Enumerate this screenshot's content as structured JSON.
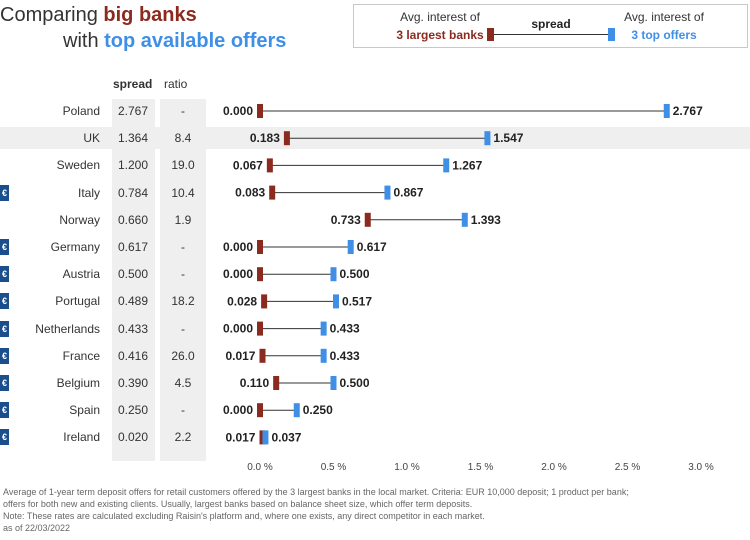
{
  "title": {
    "line1_prefix": "Comparing ",
    "line1_highlight": "big banks",
    "line2_prefix": "with ",
    "line2_highlight": "top available offers"
  },
  "legend": {
    "left_line1": "Avg. interest of",
    "left_line2": "3 largest banks",
    "middle": "spread",
    "right_line1": "Avg. interest of",
    "right_line2": "3 top offers"
  },
  "columns": {
    "spread": "spread",
    "ratio": "ratio"
  },
  "euro_symbol": "€",
  "colors": {
    "big_banks": "#8b2a1e",
    "top_offers": "#3f8fe6",
    "euro_badge": "#1a4e8c"
  },
  "chart_data": {
    "type": "dumbbell",
    "x_unit": "%",
    "xlim": [
      0,
      3.0
    ],
    "x_ticks": [
      "0.0 %",
      "0.5 %",
      "1.0 %",
      "1.5 %",
      "2.0 %",
      "2.5 %",
      "3.0 %"
    ],
    "x_tick_values": [
      0,
      0.5,
      1.0,
      1.5,
      2.0,
      2.5,
      3.0
    ],
    "series": [
      {
        "name": "Avg. interest of 3 largest banks",
        "color": "#8b2a1e"
      },
      {
        "name": "Avg. interest of 3 top offers",
        "color": "#3f8fe6"
      }
    ],
    "rows": [
      {
        "country": "Poland",
        "spread": "2.767",
        "ratio": "-",
        "big": 0.0,
        "top": 2.767,
        "big_label": "0.000",
        "top_label": "2.767",
        "euro": false
      },
      {
        "country": "UK",
        "spread": "1.364",
        "ratio": "8.4",
        "big": 0.183,
        "top": 1.547,
        "big_label": "0.183",
        "top_label": "1.547",
        "euro": false,
        "highlight": true
      },
      {
        "country": "Sweden",
        "spread": "1.200",
        "ratio": "19.0",
        "big": 0.067,
        "top": 1.267,
        "big_label": "0.067",
        "top_label": "1.267",
        "euro": false
      },
      {
        "country": "Italy",
        "spread": "0.784",
        "ratio": "10.4",
        "big": 0.083,
        "top": 0.867,
        "big_label": "0.083",
        "top_label": "0.867",
        "euro": true
      },
      {
        "country": "Norway",
        "spread": "0.660",
        "ratio": "1.9",
        "big": 0.733,
        "top": 1.393,
        "big_label": "0.733",
        "top_label": "1.393",
        "euro": false
      },
      {
        "country": "Germany",
        "spread": "0.617",
        "ratio": "-",
        "big": 0.0,
        "top": 0.617,
        "big_label": "0.000",
        "top_label": "0.617",
        "euro": true
      },
      {
        "country": "Austria",
        "spread": "0.500",
        "ratio": "-",
        "big": 0.0,
        "top": 0.5,
        "big_label": "0.000",
        "top_label": "0.500",
        "euro": true
      },
      {
        "country": "Portugal",
        "spread": "0.489",
        "ratio": "18.2",
        "big": 0.028,
        "top": 0.517,
        "big_label": "0.028",
        "top_label": "0.517",
        "euro": true
      },
      {
        "country": "Netherlands",
        "spread": "0.433",
        "ratio": "-",
        "big": 0.0,
        "top": 0.433,
        "big_label": "0.000",
        "top_label": "0.433",
        "euro": true
      },
      {
        "country": "France",
        "spread": "0.416",
        "ratio": "26.0",
        "big": 0.017,
        "top": 0.433,
        "big_label": "0.017",
        "top_label": "0.433",
        "euro": true
      },
      {
        "country": "Belgium",
        "spread": "0.390",
        "ratio": "4.5",
        "big": 0.11,
        "top": 0.5,
        "big_label": "0.110",
        "top_label": "0.500",
        "euro": true
      },
      {
        "country": "Spain",
        "spread": "0.250",
        "ratio": "-",
        "big": 0.0,
        "top": 0.25,
        "big_label": "0.000",
        "top_label": "0.250",
        "euro": true
      },
      {
        "country": "Ireland",
        "spread": "0.020",
        "ratio": "2.2",
        "big": 0.017,
        "top": 0.037,
        "big_label": "0.017",
        "top_label": "0.037",
        "euro": true
      }
    ]
  },
  "footnote": {
    "line1": "Average of 1-year term deposit offers for retail customers offered by the 3 largest banks in the local market. Criteria: EUR 10,000 deposit; 1 product per bank;",
    "line2": "offers for both new and existing clients. Usually, largest banks based on balance sheet size, which offer term deposits.",
    "line3": "Note: These rates are calculated excluding Raisin's platform and, where one exists, any direct competitor in each market.",
    "line4": "as of 22/03/2022"
  }
}
